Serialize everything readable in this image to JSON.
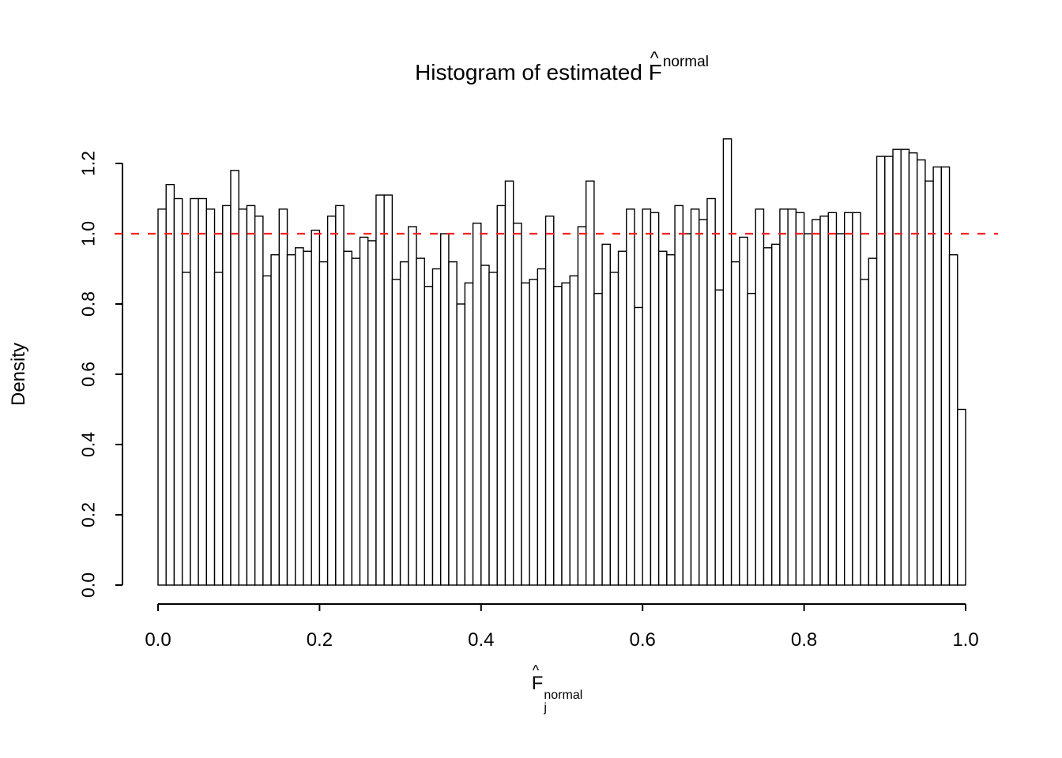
{
  "title": {
    "prefix": "Histogram of estimated ",
    "symbol": "F",
    "hat": "^",
    "superscript": "normal"
  },
  "y_axis": {
    "label": "Density",
    "ticks": [
      "0.0",
      "0.2",
      "0.4",
      "0.6",
      "0.8",
      "1.0",
      "1.2"
    ]
  },
  "x_axis": {
    "symbol": "F",
    "hat": "^",
    "subscript": "j",
    "superscript": "normal",
    "ticks": [
      "0.0",
      "0.2",
      "0.4",
      "0.6",
      "0.8",
      "1.0"
    ]
  },
  "reference_line": {
    "y": 1.0,
    "color": "#f62323",
    "style": "dashed"
  },
  "chart_data": {
    "type": "bar",
    "subtype": "histogram",
    "title": "Histogram of estimated F^normal",
    "xlabel": "F_j^normal",
    "ylabel": "Density",
    "xlim": [
      0.0,
      1.0
    ],
    "ylim": [
      0.0,
      1.2
    ],
    "grid": false,
    "bar_fill": "#ffffff",
    "bar_stroke": "#000000",
    "bin_start": 0.0,
    "bin_width": 0.01,
    "reference_line_y": 1.0,
    "values": [
      1.07,
      1.14,
      1.1,
      0.89,
      1.1,
      1.1,
      1.07,
      0.89,
      1.08,
      1.18,
      1.07,
      1.08,
      1.05,
      0.88,
      0.94,
      1.07,
      0.94,
      0.96,
      0.95,
      1.01,
      0.92,
      1.05,
      1.08,
      0.95,
      0.93,
      0.99,
      0.98,
      1.11,
      1.11,
      0.87,
      0.92,
      1.02,
      0.93,
      0.85,
      0.9,
      1.0,
      0.92,
      0.8,
      0.86,
      1.03,
      0.91,
      0.89,
      1.08,
      1.15,
      1.03,
      0.86,
      0.87,
      0.9,
      1.05,
      0.85,
      0.86,
      0.88,
      1.02,
      1.15,
      0.83,
      0.97,
      0.89,
      0.95,
      1.07,
      0.79,
      1.07,
      1.06,
      0.95,
      0.94,
      1.08,
      1.0,
      1.07,
      1.04,
      1.1,
      0.84,
      1.27,
      0.92,
      0.99,
      0.83,
      1.07,
      0.96,
      0.97,
      1.07,
      1.07,
      1.06,
      1.0,
      1.04,
      1.05,
      1.06,
      1.0,
      1.06,
      1.06,
      0.87,
      0.93,
      1.22,
      1.22,
      1.24,
      1.24,
      1.23,
      1.21,
      1.15,
      1.19,
      1.19,
      0.94,
      0.5
    ]
  }
}
